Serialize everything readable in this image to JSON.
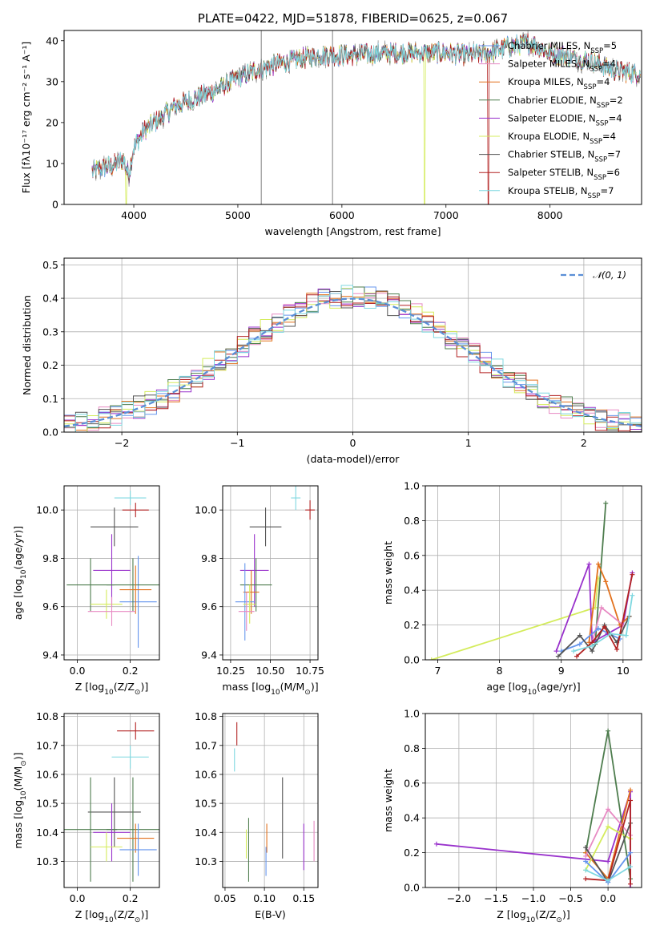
{
  "colors": {
    "chabrier_miles": "#6495ed",
    "salpeter_miles": "#e78ac3",
    "kroupa_miles": "#e2711d",
    "chabrier_elodie": "#4e7d4e",
    "salpeter_elodie": "#9932cc",
    "kroupa_elodie": "#d4ec5c",
    "chabrier_stelib": "#555555",
    "salpeter_stelib": "#b22222",
    "kroupa_stelib": "#7fd8e0",
    "data_gray": "#808080",
    "normal_line": "#5b8fd6"
  },
  "chart_data": [
    {
      "id": "spectrum",
      "type": "line",
      "title": "PLATE=0422, MJD=51878, FIBERID=0625, z=0.067",
      "xlabel": "wavelength [Angstrom, rest frame]",
      "ylabel": "Flux [fλ10⁻¹⁷ erg cm⁻² s⁻¹ A⁻¹]",
      "xlim": [
        3330,
        8880
      ],
      "ylim": [
        0,
        42.5
      ],
      "xticks": [
        4000,
        5000,
        6000,
        7000,
        8000
      ],
      "yticks": [
        0,
        10,
        20,
        30,
        40
      ],
      "grid": false,
      "legend_position": "right",
      "legend": [
        {
          "label": "Chabrier MILES, N",
          "sub": "SSP",
          "tail": "=5",
          "color_key": "chabrier_miles"
        },
        {
          "label": "Salpeter MILES, N",
          "sub": "SSP",
          "tail": "=4",
          "color_key": "salpeter_miles"
        },
        {
          "label": "Kroupa MILES, N",
          "sub": "SSP",
          "tail": "=4",
          "color_key": "kroupa_miles"
        },
        {
          "label": "Chabrier ELODIE, N",
          "sub": "SSP",
          "tail": "=2",
          "color_key": "chabrier_elodie"
        },
        {
          "label": "Salpeter ELODIE, N",
          "sub": "SSP",
          "tail": "=4",
          "color_key": "salpeter_elodie"
        },
        {
          "label": "Kroupa ELODIE, N",
          "sub": "SSP",
          "tail": "=4",
          "color_key": "kroupa_elodie"
        },
        {
          "label": "Chabrier STELIB, N",
          "sub": "SSP",
          "tail": "=7",
          "color_key": "chabrier_stelib"
        },
        {
          "label": "Salpeter STELIB, N",
          "sub": "SSP",
          "tail": "=6",
          "color_key": "salpeter_stelib"
        },
        {
          "label": "Kroupa STELIB, N",
          "sub": "SSP",
          "tail": "=7",
          "color_key": "kroupa_stelib"
        }
      ],
      "continuum": {
        "x": [
          3600,
          3700,
          3800,
          3900,
          3950,
          4000,
          4100,
          4200,
          4300,
          4400,
          4500,
          4600,
          4800,
          5000,
          5200,
          5400,
          5600,
          5800,
          6000,
          6200,
          6400,
          6600,
          6800,
          7000,
          7200,
          7400,
          7600,
          7800,
          8000,
          8200,
          8400,
          8600,
          8800
        ],
        "y": [
          8,
          9,
          9.5,
          11,
          7,
          14,
          18,
          20,
          22,
          24,
          25,
          26,
          28,
          31,
          33,
          34.5,
          35.5,
          36.5,
          36.5,
          36.5,
          37,
          37,
          37,
          37,
          36.5,
          37,
          38.5,
          39.5,
          37,
          36,
          35,
          33,
          32
        ]
      }
    },
    {
      "id": "residuals",
      "type": "line",
      "xlabel": "(data-model)/error",
      "ylabel": "Normed distribution",
      "xlim": [
        -2.5,
        2.5
      ],
      "ylim": [
        0,
        0.52
      ],
      "xticks": [
        -2,
        -1,
        0,
        1,
        2
      ],
      "xtick_labels": [
        "−2",
        "−1",
        "0",
        "1",
        "2"
      ],
      "yticks": [
        0.0,
        0.1,
        0.2,
        0.3,
        0.4,
        0.5
      ],
      "ytick_labels": [
        "0.0",
        "0.1",
        "0.2",
        "0.3",
        "0.4",
        "0.5"
      ],
      "grid": true,
      "legend_position": "top-right",
      "normal_label": "𝒩(0, 1)"
    },
    {
      "id": "age_vs_z",
      "type": "scatter",
      "xlabel_parts": [
        "Z [log",
        "10",
        "(Z/Z",
        "⊙",
        ")]"
      ],
      "ylabel_parts": [
        "age  [log",
        "10",
        "(age/yr)]"
      ],
      "xlim": [
        -0.05,
        0.31
      ],
      "ylim": [
        9.38,
        10.1
      ],
      "xticks": [
        0.0,
        0.2
      ],
      "xtick_labels": [
        "0.0",
        "0.2"
      ],
      "yticks": [
        9.4,
        9.6,
        9.8,
        10.0
      ],
      "ytick_labels": [
        "9.4",
        "9.6",
        "9.8",
        "10.0"
      ],
      "grid": true,
      "points": [
        {
          "color_key": "kroupa_stelib",
          "x": 0.2,
          "xerr": 0.06,
          "y": 10.05,
          "yerr": 0.03
        },
        {
          "color_key": "salpeter_stelib",
          "x": 0.22,
          "xerr": 0.05,
          "y": 10.0,
          "yerr": 0.03
        },
        {
          "color_key": "chabrier_stelib",
          "x": 0.14,
          "xerr": 0.09,
          "y": 9.93,
          "yerr": 0.08
        },
        {
          "color_key": "chabrier_miles",
          "x": 0.23,
          "xerr": 0.07,
          "y": 9.62,
          "yerr": 0.19
        },
        {
          "color_key": "salpeter_elodie",
          "x": 0.13,
          "xerr": 0.07,
          "y": 9.75,
          "yerr": 0.15
        },
        {
          "color_key": "chabrier_elodie",
          "x": 0.05,
          "xerr": 0.09,
          "y": 9.69,
          "yerr": 0.11
        },
        {
          "color_key": "chabrier_elodie",
          "x": 0.21,
          "xerr": 0.1,
          "y": 9.69,
          "yerr": 0.11
        },
        {
          "color_key": "kroupa_miles",
          "x": 0.22,
          "xerr": 0.06,
          "y": 9.67,
          "yerr": 0.1
        },
        {
          "color_key": "kroupa_elodie",
          "x": 0.11,
          "xerr": 0.06,
          "y": 9.61,
          "yerr": 0.06
        },
        {
          "color_key": "salpeter_miles",
          "x": 0.13,
          "xerr": 0.09,
          "y": 9.58,
          "yerr": 0.06
        }
      ]
    },
    {
      "id": "age_vs_mass",
      "type": "scatter",
      "xlabel_parts": [
        "mass [log",
        "10",
        "(M/M",
        "⊙",
        ")]"
      ],
      "xlim": [
        10.2,
        10.8
      ],
      "ylim": [
        9.38,
        10.1
      ],
      "xticks": [
        10.25,
        10.5,
        10.75
      ],
      "xtick_labels": [
        "10.25",
        "10.50",
        "10.75"
      ],
      "yticks": [
        9.4,
        9.6,
        9.8,
        10.0
      ],
      "ytick_labels": [
        "9.4",
        "9.6",
        "9.8",
        "10.0"
      ],
      "grid": true,
      "points": [
        {
          "color_key": "kroupa_stelib",
          "x": 10.66,
          "xerr": 0.03,
          "y": 10.05,
          "yerr": 0.05
        },
        {
          "color_key": "salpeter_stelib",
          "x": 10.75,
          "xerr": 0.03,
          "y": 10.0,
          "yerr": 0.04
        },
        {
          "color_key": "chabrier_stelib",
          "x": 10.47,
          "xerr": 0.1,
          "y": 9.93,
          "yerr": 0.08
        },
        {
          "color_key": "salpeter_elodie",
          "x": 10.4,
          "xerr": 0.09,
          "y": 9.75,
          "yerr": 0.15
        },
        {
          "color_key": "chabrier_elodie",
          "x": 10.41,
          "xerr": 0.1,
          "y": 9.69,
          "yerr": 0.11
        },
        {
          "color_key": "kroupa_miles",
          "x": 10.38,
          "xerr": 0.05,
          "y": 9.66,
          "yerr": 0.09
        },
        {
          "color_key": "chabrier_miles",
          "x": 10.34,
          "xerr": 0.06,
          "y": 9.62,
          "yerr": 0.16
        },
        {
          "color_key": "kroupa_elodie",
          "x": 10.37,
          "xerr": 0.04,
          "y": 9.61,
          "yerr": 0.08
        },
        {
          "color_key": "salpeter_miles",
          "x": 10.35,
          "xerr": 0.05,
          "y": 9.58,
          "yerr": 0.08
        }
      ]
    },
    {
      "id": "mass_weight_vs_age",
      "type": "line",
      "xlabel_parts": [
        "age  [log",
        "10",
        "(age/yr)]"
      ],
      "ylabel": "mass weight",
      "xlim": [
        6.8,
        10.3
      ],
      "ylim": [
        0,
        1.0
      ],
      "xticks": [
        7,
        8,
        9,
        10
      ],
      "xtick_labels": [
        "7",
        "8",
        "9",
        "10"
      ],
      "yticks": [
        0.0,
        0.2,
        0.4,
        0.6,
        0.8,
        1.0
      ],
      "ytick_labels": [
        "0.0",
        "0.2",
        "0.4",
        "0.6",
        "0.8",
        "1.0"
      ],
      "grid": true,
      "series": [
        {
          "color_key": "kroupa_elodie",
          "x": [
            6.9,
            9.55,
            9.6
          ],
          "y": [
            0.0,
            0.3,
            0.47
          ]
        },
        {
          "color_key": "chabrier_elodie",
          "x": [
            9.55,
            9.72
          ],
          "y": [
            0.09,
            0.9
          ]
        },
        {
          "color_key": "salpeter_elodie",
          "x": [
            8.92,
            9.45,
            9.5,
            9.75,
            10.0,
            10.15
          ],
          "y": [
            0.05,
            0.55,
            0.1,
            0.15,
            0.2,
            0.5
          ]
        },
        {
          "color_key": "kroupa_miles",
          "x": [
            9.45,
            9.6,
            9.72,
            9.95,
            10.1
          ],
          "y": [
            0.1,
            0.55,
            0.45,
            0.2,
            0.25
          ]
        },
        {
          "color_key": "salpeter_miles",
          "x": [
            9.5,
            9.65,
            10.0
          ],
          "y": [
            0.1,
            0.3,
            0.2
          ]
        },
        {
          "color_key": "chabrier_miles",
          "x": [
            9.0,
            9.3,
            9.6,
            9.95
          ],
          "y": [
            0.05,
            0.09,
            0.18,
            0.12
          ]
        },
        {
          "color_key": "chabrier_stelib",
          "x": [
            8.95,
            9.3,
            9.5,
            9.7,
            9.9,
            10.1
          ],
          "y": [
            0.02,
            0.14,
            0.05,
            0.2,
            0.1,
            0.25
          ]
        },
        {
          "color_key": "salpeter_stelib",
          "x": [
            9.25,
            9.5,
            9.7,
            9.9,
            10.15
          ],
          "y": [
            0.02,
            0.1,
            0.19,
            0.06,
            0.49
          ]
        },
        {
          "color_key": "kroupa_stelib",
          "x": [
            9.2,
            9.5,
            9.8,
            10.05,
            10.15
          ],
          "y": [
            0.05,
            0.08,
            0.15,
            0.14,
            0.37
          ]
        }
      ]
    },
    {
      "id": "mass_vs_z",
      "type": "scatter",
      "xlabel_parts": [
        "Z [log",
        "10",
        "(Z/Z",
        "⊙",
        ")]"
      ],
      "ylabel_parts": [
        "mass [log",
        "10",
        "(M/M",
        "⊙",
        ")]"
      ],
      "xlim": [
        -0.05,
        0.31
      ],
      "ylim": [
        10.21,
        10.81
      ],
      "xticks": [
        0.0,
        0.2
      ],
      "xtick_labels": [
        "0.0",
        "0.2"
      ],
      "yticks": [
        10.3,
        10.4,
        10.5,
        10.6,
        10.7,
        10.8
      ],
      "ytick_labels": [
        "10.3",
        "10.4",
        "10.5",
        "10.6",
        "10.7",
        "10.8"
      ],
      "grid": true,
      "points": [
        {
          "color_key": "salpeter_stelib",
          "x": 0.22,
          "xerr": 0.07,
          "y": 10.75,
          "yerr": 0.03
        },
        {
          "color_key": "kroupa_stelib",
          "x": 0.2,
          "xerr": 0.07,
          "y": 10.66,
          "yerr": 0.04
        },
        {
          "color_key": "chabrier_stelib",
          "x": 0.14,
          "xerr": 0.1,
          "y": 10.47,
          "yerr": 0.12
        },
        {
          "color_key": "chabrier_elodie",
          "x": 0.05,
          "xerr": 0.1,
          "y": 10.41,
          "yerr": 0.18
        },
        {
          "color_key": "chabrier_elodie",
          "x": 0.21,
          "xerr": 0.1,
          "y": 10.41,
          "yerr": 0.18
        },
        {
          "color_key": "salpeter_elodie",
          "x": 0.13,
          "xerr": 0.07,
          "y": 10.4,
          "yerr": 0.1
        },
        {
          "color_key": "kroupa_miles",
          "x": 0.22,
          "xerr": 0.07,
          "y": 10.38,
          "yerr": 0.05
        },
        {
          "color_key": "kroupa_elodie",
          "x": 0.11,
          "xerr": 0.06,
          "y": 10.35,
          "yerr": 0.05
        },
        {
          "color_key": "chabrier_miles",
          "x": 0.23,
          "xerr": 0.07,
          "y": 10.34,
          "yerr": 0.09
        }
      ]
    },
    {
      "id": "mass_vs_ebv",
      "type": "scatter",
      "xlabel": "E(B-V)",
      "xlim": [
        0.047,
        0.168
      ],
      "ylim": [
        10.21,
        10.81
      ],
      "xticks": [
        0.05,
        0.1,
        0.15
      ],
      "xtick_labels": [
        "0.05",
        "0.10",
        "0.15"
      ],
      "yticks": [
        10.3,
        10.4,
        10.5,
        10.6,
        10.7,
        10.8
      ],
      "ytick_labels": [
        "10.3",
        "10.4",
        "10.5",
        "10.6",
        "10.7",
        "10.8"
      ],
      "grid": true,
      "points": [
        {
          "color_key": "salpeter_stelib",
          "x": 0.065,
          "y": 10.74,
          "yerr": 0.04
        },
        {
          "color_key": "kroupa_stelib",
          "x": 0.062,
          "y": 10.65,
          "yerr": 0.04
        },
        {
          "color_key": "chabrier_stelib",
          "x": 0.123,
          "y": 10.45,
          "yerr": 0.14
        },
        {
          "color_key": "chabrier_elodie",
          "x": 0.08,
          "y": 10.34,
          "yerr": 0.11
        },
        {
          "color_key": "kroupa_elodie",
          "x": 0.077,
          "y": 10.36,
          "yerr": 0.05
        },
        {
          "color_key": "kroupa_miles",
          "x": 0.103,
          "y": 10.38,
          "yerr": 0.05
        },
        {
          "color_key": "chabrier_miles",
          "x": 0.102,
          "y": 10.3,
          "yerr": 0.05
        },
        {
          "color_key": "salpeter_elodie",
          "x": 0.15,
          "y": 10.35,
          "yerr": 0.08
        },
        {
          "color_key": "salpeter_miles",
          "x": 0.163,
          "y": 10.37,
          "yerr": 0.07
        }
      ]
    },
    {
      "id": "mass_weight_vs_z",
      "type": "line",
      "xlabel_parts": [
        "Z [log",
        "10",
        "(Z/Z",
        "⊙",
        ")]"
      ],
      "ylabel": "mass weight",
      "xlim": [
        -2.45,
        0.45
      ],
      "ylim": [
        0,
        1.0
      ],
      "xticks": [
        -2.0,
        -1.5,
        -1.0,
        -0.5,
        0.0
      ],
      "xtick_labels": [
        "−2.0",
        "−1.5",
        "−1.0",
        "−0.5",
        "0.0"
      ],
      "yticks": [
        0.0,
        0.2,
        0.4,
        0.6,
        0.8,
        1.0
      ],
      "ytick_labels": [
        "0.0",
        "0.2",
        "0.4",
        "0.6",
        "0.8",
        "1.0"
      ],
      "grid": true,
      "series": [
        {
          "color_key": "salpeter_elodie",
          "x": [
            -2.3,
            0.0,
            0.3,
            0.3
          ],
          "y": [
            0.25,
            0.15,
            0.55,
            0.0
          ]
        },
        {
          "color_key": "chabrier_elodie",
          "x": [
            -0.3,
            0.0,
            0.3
          ],
          "y": [
            0.2,
            0.9,
            0.05
          ]
        },
        {
          "color_key": "kroupa_miles",
          "x": [
            -0.3,
            0.0,
            0.3
          ],
          "y": [
            0.2,
            0.05,
            0.56
          ]
        },
        {
          "color_key": "salpeter_miles",
          "x": [
            -0.3,
            0.0,
            0.3
          ],
          "y": [
            0.18,
            0.45,
            0.3
          ]
        },
        {
          "color_key": "kroupa_elodie",
          "x": [
            -0.3,
            0.0,
            0.3
          ],
          "y": [
            0.1,
            0.35,
            0.28
          ]
        },
        {
          "color_key": "chabrier_stelib",
          "x": [
            -0.3,
            0.0,
            0.3
          ],
          "y": [
            0.23,
            0.03,
            0.37
          ]
        },
        {
          "color_key": "salpeter_stelib",
          "x": [
            -0.3,
            0.0,
            0.3,
            0.3
          ],
          "y": [
            0.05,
            0.04,
            0.5,
            0.02
          ]
        },
        {
          "color_key": "chabrier_miles",
          "x": [
            -0.3,
            0.0,
            0.3
          ],
          "y": [
            0.15,
            0.03,
            0.2
          ]
        },
        {
          "color_key": "kroupa_stelib",
          "x": [
            -0.3,
            0.0,
            0.3
          ],
          "y": [
            0.1,
            0.04,
            0.12
          ]
        }
      ]
    }
  ]
}
